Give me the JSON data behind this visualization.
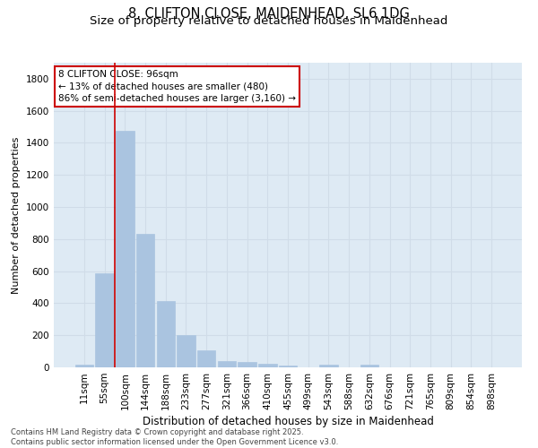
{
  "title_line1": "8, CLIFTON CLOSE, MAIDENHEAD, SL6 1DG",
  "title_line2": "Size of property relative to detached houses in Maidenhead",
  "xlabel": "Distribution of detached houses by size in Maidenhead",
  "ylabel": "Number of detached properties",
  "categories": [
    "11sqm",
    "55sqm",
    "100sqm",
    "144sqm",
    "188sqm",
    "233sqm",
    "277sqm",
    "321sqm",
    "366sqm",
    "410sqm",
    "455sqm",
    "499sqm",
    "543sqm",
    "588sqm",
    "632sqm",
    "676sqm",
    "721sqm",
    "765sqm",
    "809sqm",
    "854sqm",
    "898sqm"
  ],
  "values": [
    18,
    585,
    1475,
    830,
    415,
    200,
    105,
    40,
    35,
    25,
    10,
    0,
    15,
    0,
    18,
    0,
    0,
    0,
    0,
    0,
    0
  ],
  "bar_color": "#aac4e0",
  "bar_edgecolor": "#aac4e0",
  "ylim": [
    0,
    1900
  ],
  "yticks": [
    0,
    200,
    400,
    600,
    800,
    1000,
    1200,
    1400,
    1600,
    1800
  ],
  "vline_x_index": 1.5,
  "vline_color": "#cc0000",
  "annotation_text": "8 CLIFTON CLOSE: 96sqm\n← 13% of detached houses are smaller (480)\n86% of semi-detached houses are larger (3,160) →",
  "annotation_box_color": "#ffffff",
  "annotation_box_edgecolor": "#cc0000",
  "annotation_fontsize": 7.5,
  "grid_color": "#d0dce8",
  "background_color": "#deeaf4",
  "footnote": "Contains HM Land Registry data © Crown copyright and database right 2025.\nContains public sector information licensed under the Open Government Licence v3.0.",
  "title_fontsize": 10.5,
  "subtitle_fontsize": 9.5,
  "xlabel_fontsize": 8.5,
  "ylabel_fontsize": 8.0,
  "tick_fontsize": 7.5,
  "footnote_fontsize": 6.0
}
